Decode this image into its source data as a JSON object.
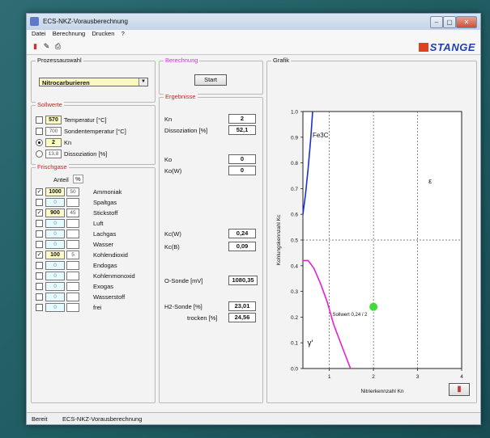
{
  "window": {
    "title": "ECS-NKZ-Vorausberechnung",
    "buttons": [
      "–",
      "▢",
      "✕"
    ]
  },
  "menu": [
    "Datei",
    "Berechnung",
    "Drucken",
    "?"
  ],
  "logo": "STANGE",
  "prozessauswahl": {
    "label": "Prozessauswahl",
    "selected": "Nitrocarburieren"
  },
  "sollwerte": {
    "label": "Sollwerte",
    "rows": [
      {
        "value": "570",
        "label": "Temperatur [°C]"
      },
      {
        "value": "700",
        "label": "Sondentemperatur [°C]"
      },
      {
        "value": "2",
        "label": "Kn"
      },
      {
        "value": "13,8",
        "label": "Dissoziation [%]"
      }
    ]
  },
  "frischgase": {
    "label": "Frischgase",
    "col_anteil": "Anteil",
    "col_pct": "%",
    "rows": [
      {
        "name": "Ammoniak",
        "value": "1000",
        "pct": "50"
      },
      {
        "name": "Spaltgas",
        "value": "0",
        "pct": ""
      },
      {
        "name": "Stickstoff",
        "value": "900",
        "pct": "45"
      },
      {
        "name": "Luft",
        "value": "0",
        "pct": ""
      },
      {
        "name": "Lachgas",
        "value": "0",
        "pct": ""
      },
      {
        "name": "Wasser",
        "value": "0",
        "pct": ""
      },
      {
        "name": "Kohlendioxid",
        "value": "100",
        "pct": "5"
      },
      {
        "name": "Endogas",
        "value": "0",
        "pct": ""
      },
      {
        "name": "Kohlenmonoxid",
        "value": "0",
        "pct": ""
      },
      {
        "name": "Exogas",
        "value": "0",
        "pct": ""
      },
      {
        "name": "Wasserstoff",
        "value": "0",
        "pct": ""
      },
      {
        "name": "frei",
        "value": "0",
        "pct": ""
      }
    ]
  },
  "berechnung": {
    "label": "Berechnung",
    "button": "Start"
  },
  "ergebnisse": {
    "label": "Ergebnisse",
    "rows": [
      {
        "label": "Kn",
        "value": "2"
      },
      {
        "label": "Dissoziation [%]",
        "value": "52,1"
      },
      {
        "label": "Ko",
        "value": "0"
      },
      {
        "label": "Ko(W)",
        "value": "0"
      },
      {
        "label": "Kc(W)",
        "value": "0,24"
      },
      {
        "label": "Kc(B)",
        "value": "0,09"
      },
      {
        "label": "O-Sonde [mV]",
        "value": "1080,35"
      },
      {
        "label": "H2-Sonde [%]",
        "value": "23,01"
      },
      {
        "label": "trocken [%]",
        "value": "24,56"
      }
    ]
  },
  "grafik": {
    "label": "Grafik"
  },
  "chart_data": {
    "type": "line",
    "xlabel": "Nitrierkennzahl Kn",
    "ylabel": "Kohlungskennzahl Kc",
    "xlim": [
      0.4,
      4
    ],
    "ylim": [
      0,
      1
    ],
    "xticks": [
      "1",
      "2",
      "3",
      "4"
    ],
    "yticks": [
      "0.0",
      "0.1",
      "0.2",
      "0.3",
      "0.4",
      "0.5",
      "0.6",
      "0.7",
      "0.8",
      "0.9",
      "1.0"
    ],
    "grid": "dotted at x=1,2,3 and y=0.5",
    "series": [
      {
        "name": "Fe3C",
        "color": "#1a2fd8",
        "points": [
          [
            0.4,
            0.6
          ],
          [
            0.46,
            0.68
          ],
          [
            0.52,
            0.78
          ],
          [
            0.58,
            0.9
          ],
          [
            0.62,
            1.0
          ]
        ]
      },
      {
        "name": "",
        "color": "#e51fd8",
        "points": [
          [
            0.4,
            0.42
          ],
          [
            0.52,
            0.42
          ],
          [
            0.65,
            0.39
          ],
          [
            0.8,
            0.33
          ],
          [
            0.95,
            0.26
          ],
          [
            1.1,
            0.17
          ],
          [
            1.3,
            0.08
          ],
          [
            1.48,
            0.0
          ]
        ]
      }
    ],
    "region_labels": [
      "Fe3C",
      "ε",
      "γ'"
    ],
    "marker": {
      "x": 2,
      "y": 0.24,
      "color": "#3cdc3c",
      "label": "Sollwert 0,24 / 2"
    }
  },
  "status": {
    "left": "Bereit",
    "right": "ECS-NKZ-Vorausberechnung"
  }
}
